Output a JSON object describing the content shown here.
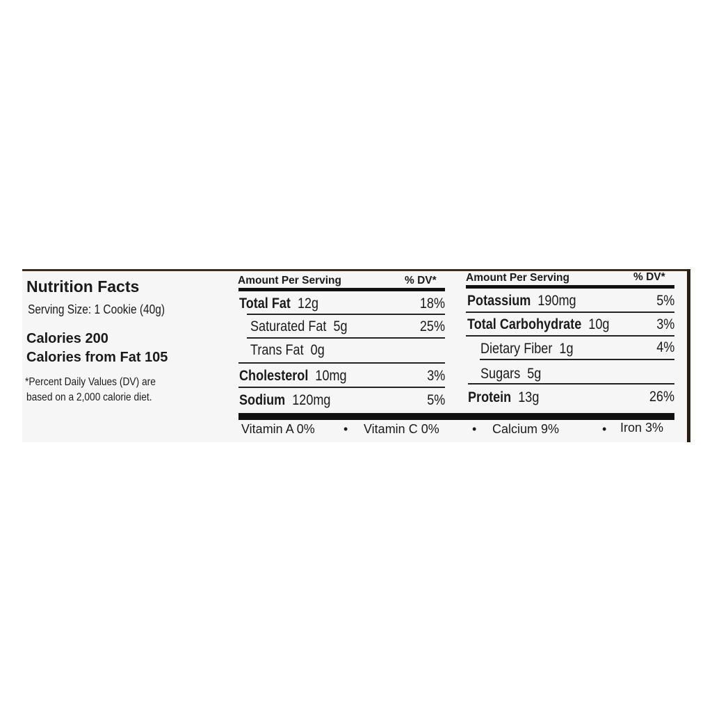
{
  "left": {
    "title": "Nutrition Facts",
    "serving_size": "Serving Size: 1 Cookie (40g)",
    "calories": "Calories 200",
    "calories_from_fat": "Calories from Fat 105",
    "footnote_1": "*Percent Daily Values (DV) are",
    "footnote_2": "based on a 2,000 calorie diet."
  },
  "middle": {
    "header_amount": "Amount Per Serving",
    "header_dv": "% DV*",
    "rows": [
      {
        "name": "Total Fat",
        "amount": "12g",
        "dv": "18%",
        "bold": true
      },
      {
        "name": "Saturated Fat",
        "amount": "5g",
        "dv": "25%",
        "bold": false
      },
      {
        "name": "Trans Fat",
        "amount": "0g",
        "dv": "",
        "bold": false
      },
      {
        "name": "Cholesterol",
        "amount": "10mg",
        "dv": "3%",
        "bold": true
      },
      {
        "name": "Sodium",
        "amount": "120mg",
        "dv": "5%",
        "bold": true
      }
    ]
  },
  "right": {
    "header_amount": "Amount Per Serving",
    "header_dv": "% DV*",
    "rows": [
      {
        "name": "Potassium",
        "amount": "190mg",
        "dv": "5%",
        "bold": true
      },
      {
        "name": "Total Carbohydrate",
        "amount": "10g",
        "dv": "3%",
        "bold": true
      },
      {
        "name": "Dietary Fiber",
        "amount": "1g",
        "dv": "4%",
        "bold": false
      },
      {
        "name": "Sugars",
        "amount": "5g",
        "dv": "",
        "bold": false
      },
      {
        "name": "Protein",
        "amount": "13g",
        "dv": "26%",
        "bold": true
      }
    ]
  },
  "vitamins": {
    "vitamin_a": "Vitamin A 0%",
    "vitamin_c": "Vitamin C 0%",
    "calcium": "Calcium 9%",
    "iron": "Iron 3%",
    "separator": "•"
  }
}
